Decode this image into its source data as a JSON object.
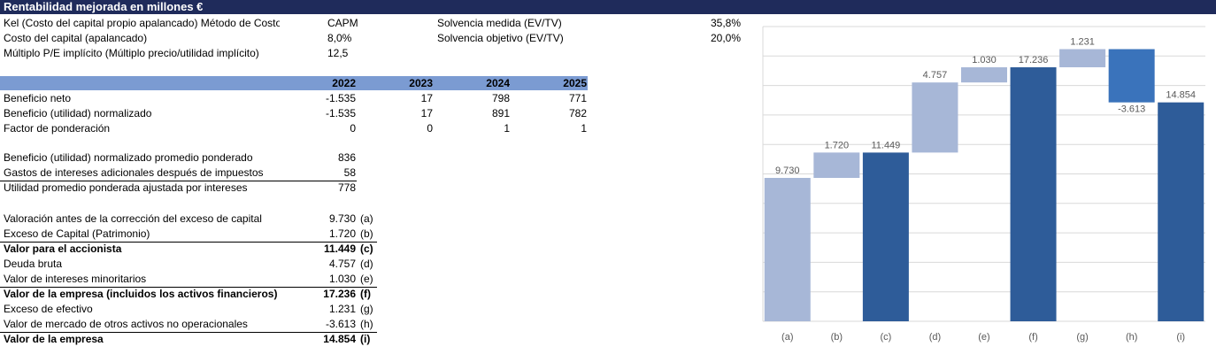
{
  "header": {
    "title": "Rentabilidad mejorada en millones €"
  },
  "params": {
    "rows": [
      [
        "Kel (Costo del capital propio apalancado) Método de Costo",
        "CAPM",
        "Solvencia medida (EV/TV)",
        "35,8%"
      ],
      [
        "Costo del capital (apalancado)",
        "8,0%",
        "Solvencia objetivo (EV/TV)",
        "20,0%"
      ],
      [
        "Múltiplo P/E implícito (Múltiplo precio/utilidad implícito)",
        "12,5"
      ]
    ]
  },
  "earnings": {
    "years": [
      "2022",
      "2023",
      "2024",
      "2025"
    ],
    "rows": [
      {
        "label": "Beneficio neto",
        "values": [
          "-1.535",
          "17",
          "798",
          "771"
        ]
      },
      {
        "label": "Beneficio (utilidad) normalizado",
        "values": [
          "-1.535",
          "17",
          "891",
          "782"
        ]
      },
      {
        "label": "Factor de ponderación",
        "values": [
          "0",
          "0",
          "1",
          "1"
        ]
      }
    ]
  },
  "weighted": {
    "rows": [
      {
        "label": "Beneficio (utilidad) normalizado promedio ponderado",
        "value": "836"
      },
      {
        "label": "Gastos de intereses adicionales después de impuestos",
        "value": "58"
      },
      {
        "label": "Utilidad promedio ponderada ajustada por intereses",
        "value": "778"
      }
    ]
  },
  "valuation": {
    "rows": [
      {
        "label": "Valoración antes de la corrección del exceso de capital",
        "value": "9.730",
        "ref": "(a)"
      },
      {
        "label": "Exceso de Capital (Patrimonio)",
        "value": "1.720",
        "ref": "(b)"
      },
      {
        "label": "Valor para el accionista",
        "value": "11.449",
        "ref": "(c)"
      },
      {
        "label": "Deuda bruta",
        "value": "4.757",
        "ref": "(d)"
      },
      {
        "label": "Valor de intereses minoritarios",
        "value": "1.030",
        "ref": "(e)"
      },
      {
        "label": "Valor de la empresa (incluidos los activos financieros)",
        "value": "17.236",
        "ref": "(f)"
      },
      {
        "label": "Exceso de efectivo",
        "value": "1.231",
        "ref": "(g)"
      },
      {
        "label": "Valor de mercado de otros activos no operacionales",
        "value": "-3.613",
        "ref": "(h)"
      },
      {
        "label": "Valor de la empresa",
        "value": "14.854",
        "ref": "(i)"
      }
    ]
  },
  "chart_data": {
    "type": "waterfall",
    "categories": [
      "(a)",
      "(b)",
      "(c)",
      "(d)",
      "(e)",
      "(f)",
      "(g)",
      "(h)",
      "(i)"
    ],
    "values": [
      9730,
      1720,
      11449,
      4757,
      1030,
      17236,
      1231,
      -3613,
      14854
    ],
    "value_labels": [
      "9.730",
      "1.720",
      "11.449",
      "4.757",
      "1.030",
      "17.236",
      "1.231",
      "-3.613",
      "14.854"
    ],
    "measure": [
      "relative",
      "relative",
      "total",
      "relative",
      "relative",
      "total",
      "relative",
      "relative",
      "total"
    ],
    "colors": [
      "#a7b7d7",
      "#a7b7d7",
      "#2e5c99",
      "#a7b7d7",
      "#a7b7d7",
      "#2e5c99",
      "#a7b7d7",
      "#3a73bb",
      "#2e5c99"
    ],
    "ylim": [
      0,
      20000
    ],
    "yticks": [
      0,
      2000,
      4000,
      6000,
      8000,
      10000,
      12000,
      14000,
      16000,
      18000,
      20000
    ],
    "grid": true
  }
}
